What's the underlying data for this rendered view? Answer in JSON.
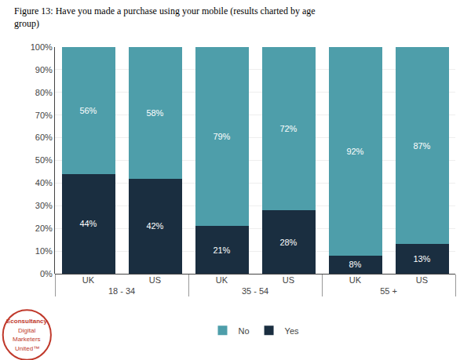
{
  "chart_data": {
    "type": "bar",
    "title": [
      "Figure 13: Have you made a purchase using your mobile (results charted by age",
      "group)"
    ],
    "groups": [
      "18 - 34",
      "35 - 54",
      "55 +"
    ],
    "categories": [
      "UK",
      "US",
      "UK",
      "US",
      "UK",
      "US"
    ],
    "series": [
      {
        "name": "Yes",
        "color": "#1a2e40",
        "values": [
          44,
          42,
          21,
          28,
          8,
          13
        ],
        "value_labels": [
          "44%",
          "42%",
          "21%",
          "28%",
          "8%",
          "13%"
        ]
      },
      {
        "name": "No",
        "color": "#4e9eaa",
        "values": [
          56,
          58,
          79,
          72,
          92,
          87
        ],
        "value_labels": [
          "56%",
          "58%",
          "79%",
          "72%",
          "92%",
          "87%"
        ]
      }
    ],
    "stacked": true,
    "data_labels": true,
    "ylim": [
      0,
      100
    ],
    "yticks": [
      {
        "value": 0,
        "label": "0%"
      },
      {
        "value": 10,
        "label": "10%"
      },
      {
        "value": 20,
        "label": "20%"
      },
      {
        "value": 30,
        "label": "30%"
      },
      {
        "value": 40,
        "label": "40%"
      },
      {
        "value": 50,
        "label": "50%"
      },
      {
        "value": 60,
        "label": "60%"
      },
      {
        "value": 70,
        "label": "70%"
      },
      {
        "value": 80,
        "label": "80%"
      },
      {
        "value": 90,
        "label": "90%"
      },
      {
        "value": 100,
        "label": "100%"
      }
    ],
    "grid": true,
    "legend": "bottom",
    "annotations": [
      {
        "text": "Econsultancy",
        "color": "#c0392b"
      },
      {
        "text": "Digital",
        "color": "#c0392b"
      },
      {
        "text": "Marketers",
        "color": "#c0392b"
      },
      {
        "text": "United™",
        "color": "#c0392b"
      }
    ]
  }
}
